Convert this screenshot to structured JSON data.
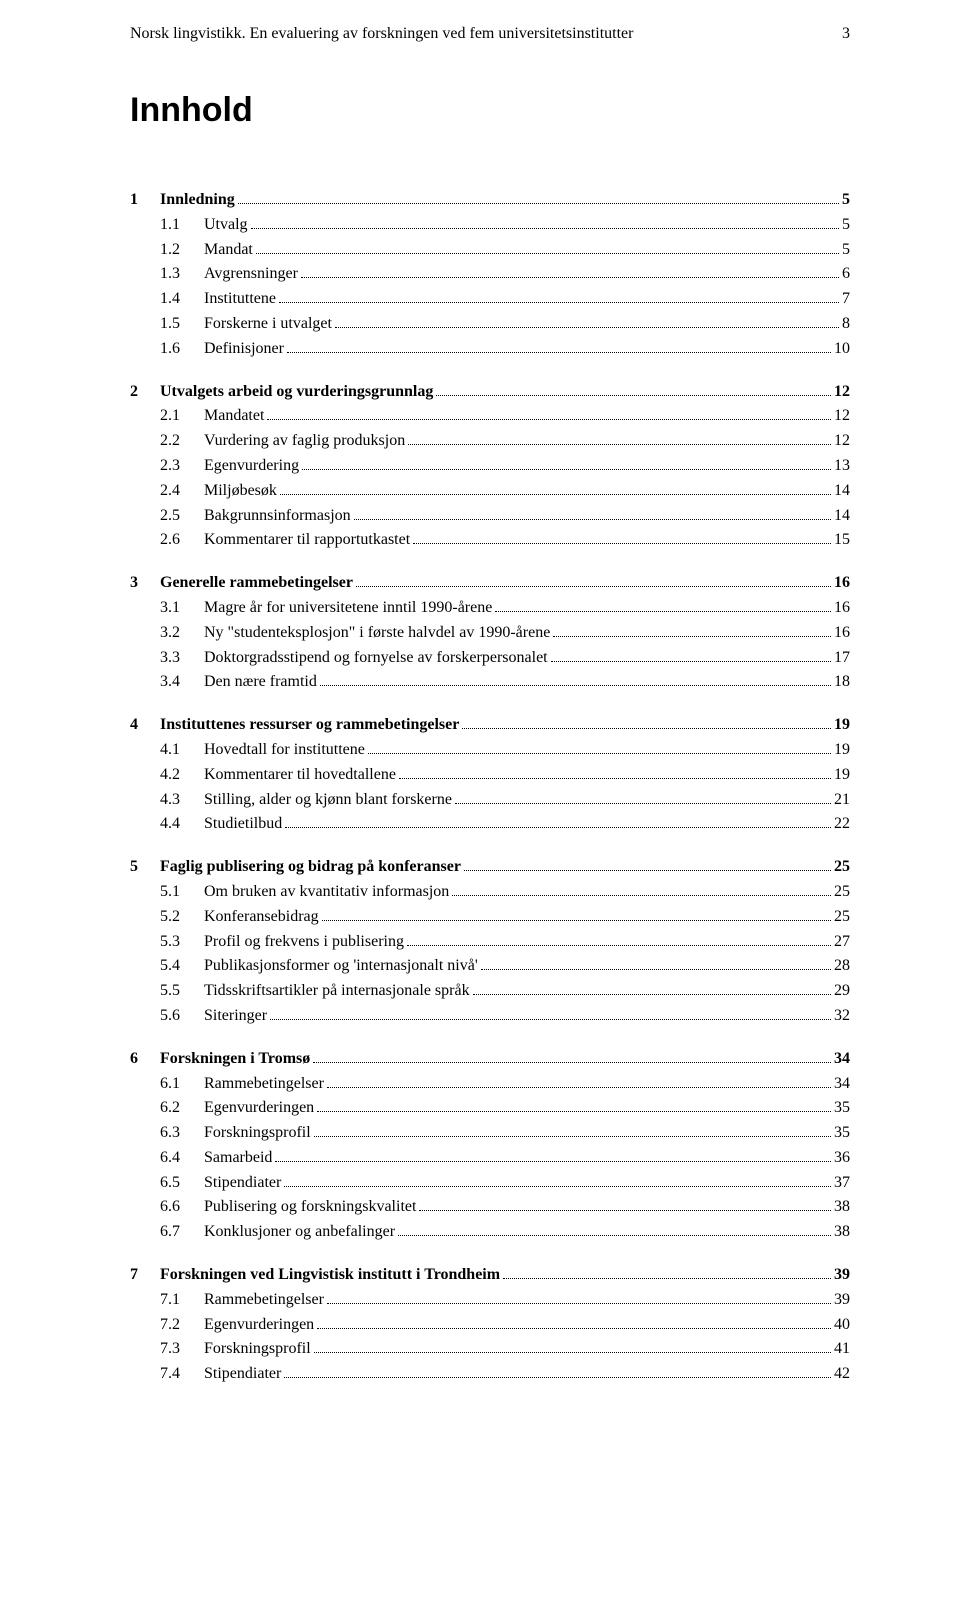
{
  "header": {
    "title": "Norsk lingvistikk. En evaluering av forskningen ved fem universitetsinstitutter",
    "page_num": "3"
  },
  "main_title": "Innhold",
  "toc": [
    {
      "num": "1",
      "title": "Innledning",
      "page": "5",
      "subs": [
        {
          "num": "1.1",
          "title": "Utvalg",
          "page": "5"
        },
        {
          "num": "1.2",
          "title": "Mandat",
          "page": "5"
        },
        {
          "num": "1.3",
          "title": "Avgrensninger",
          "page": "6"
        },
        {
          "num": "1.4",
          "title": "Instituttene",
          "page": "7"
        },
        {
          "num": "1.5",
          "title": "Forskerne i utvalget",
          "page": "8"
        },
        {
          "num": "1.6",
          "title": "Definisjoner",
          "page": "10"
        }
      ]
    },
    {
      "num": "2",
      "title": "Utvalgets arbeid og vurderingsgrunnlag",
      "page": "12",
      "subs": [
        {
          "num": "2.1",
          "title": "Mandatet",
          "page": "12"
        },
        {
          "num": "2.2",
          "title": "Vurdering av faglig produksjon",
          "page": "12"
        },
        {
          "num": "2.3",
          "title": "Egenvurdering",
          "page": "13"
        },
        {
          "num": "2.4",
          "title": "Miljøbesøk",
          "page": "14"
        },
        {
          "num": "2.5",
          "title": "Bakgrunnsinformasjon",
          "page": "14"
        },
        {
          "num": "2.6",
          "title": "Kommentarer til rapportutkastet",
          "page": "15"
        }
      ]
    },
    {
      "num": "3",
      "title": "Generelle rammebetingelser",
      "page": "16",
      "subs": [
        {
          "num": "3.1",
          "title": "Magre år for universitetene inntil 1990-årene",
          "page": "16"
        },
        {
          "num": "3.2",
          "title": "Ny \"studenteksplosjon\" i første halvdel av 1990-årene",
          "page": "16"
        },
        {
          "num": "3.3",
          "title": "Doktorgradsstipend og fornyelse av forskerpersonalet",
          "page": "17"
        },
        {
          "num": "3.4",
          "title": "Den nære framtid",
          "page": "18"
        }
      ]
    },
    {
      "num": "4",
      "title": "Instituttenes ressurser og rammebetingelser",
      "page": "19",
      "subs": [
        {
          "num": "4.1",
          "title": "Hovedtall for instituttene",
          "page": "19"
        },
        {
          "num": "4.2",
          "title": "Kommentarer til hovedtallene",
          "page": "19"
        },
        {
          "num": "4.3",
          "title": "Stilling, alder og kjønn blant forskerne",
          "page": "21"
        },
        {
          "num": "4.4",
          "title": "Studietilbud",
          "page": "22"
        }
      ]
    },
    {
      "num": "5",
      "title": "Faglig publisering og bidrag på konferanser",
      "page": "25",
      "subs": [
        {
          "num": "5.1",
          "title": "Om bruken av kvantitativ informasjon",
          "page": "25"
        },
        {
          "num": "5.2",
          "title": "Konferansebidrag",
          "page": "25"
        },
        {
          "num": "5.3",
          "title": "Profil og frekvens i publisering",
          "page": "27"
        },
        {
          "num": "5.4",
          "title": "Publikasjonsformer og 'internasjonalt nivå'",
          "page": "28"
        },
        {
          "num": "5.5",
          "title": "Tidsskriftsartikler på internasjonale språk",
          "page": "29"
        },
        {
          "num": "5.6",
          "title": "Siteringer",
          "page": "32"
        }
      ]
    },
    {
      "num": "6",
      "title": "Forskningen i Tromsø",
      "page": "34",
      "subs": [
        {
          "num": "6.1",
          "title": "Rammebetingelser",
          "page": "34"
        },
        {
          "num": "6.2",
          "title": "Egenvurderingen",
          "page": "35"
        },
        {
          "num": "6.3",
          "title": "Forskningsprofil",
          "page": "35"
        },
        {
          "num": "6.4",
          "title": "Samarbeid",
          "page": "36"
        },
        {
          "num": "6.5",
          "title": "Stipendiater",
          "page": "37"
        },
        {
          "num": "6.6",
          "title": "Publisering og forskningskvalitet",
          "page": "38"
        },
        {
          "num": "6.7",
          "title": "Konklusjoner og anbefalinger",
          "page": "38"
        }
      ]
    },
    {
      "num": "7",
      "title": "Forskningen ved Lingvistisk institutt i Trondheim",
      "page": "39",
      "subs": [
        {
          "num": "7.1",
          "title": "Rammebetingelser",
          "page": "39"
        },
        {
          "num": "7.2",
          "title": "Egenvurderingen",
          "page": "40"
        },
        {
          "num": "7.3",
          "title": "Forskningsprofil",
          "page": "41"
        },
        {
          "num": "7.4",
          "title": "Stipendiater",
          "page": "42"
        }
      ]
    }
  ]
}
